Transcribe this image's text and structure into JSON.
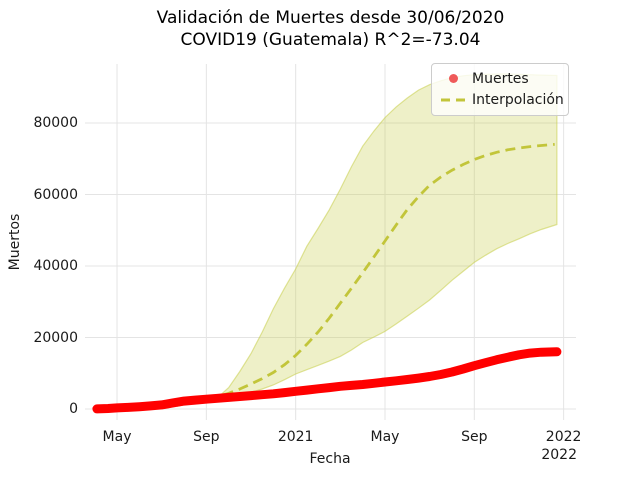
{
  "title": {
    "line1": "Validación de Muertes desde 30/06/2020",
    "line2": "COVID19 (Guatemala) R^2=-73.04"
  },
  "axes": {
    "xlabel": "Fecha",
    "ylabel": "Muertos",
    "x_offset_label": "2022",
    "x_ticks": [
      {
        "label": "May",
        "month": 1
      },
      {
        "label": "Sep",
        "month": 5
      },
      {
        "label": "2021",
        "month": 9
      },
      {
        "label": "May",
        "month": 13
      },
      {
        "label": "Sep",
        "month": 17
      },
      {
        "label": "2022",
        "month": 21
      }
    ],
    "y_ticks": [
      {
        "label": "0",
        "value": 0
      },
      {
        "label": "20000",
        "value": 20000
      },
      {
        "label": "40000",
        "value": 40000
      },
      {
        "label": "60000",
        "value": 60000
      },
      {
        "label": "80000",
        "value": 80000
      }
    ]
  },
  "legend": {
    "items": [
      {
        "label": "Muertes",
        "marker": "scatter-dot"
      },
      {
        "label": "Interpolación",
        "marker": "dashed-line"
      }
    ]
  },
  "colors": {
    "muertes": "#ff0000",
    "muertes_legend_dot": "#ef5a5a",
    "interpolacion": "#c2c53a",
    "band_fill": "#c6cd48",
    "band_fill_alpha": 0.3,
    "band_edge_alpha": 0.55,
    "grid": "#e4e4e4",
    "legend_border": "#cccccc"
  },
  "chart_data": {
    "type": "line",
    "title": "Validación de Muertes desde 30/06/2020 COVID19 (Guatemala) R^2=-73.04",
    "xlabel": "Fecha",
    "ylabel": "Muertos",
    "x_unit": "months since 2020-04-01 (fractional)",
    "xlim": [
      -0.45,
      21.55
    ],
    "ylim": [
      -3100,
      96500
    ],
    "grid": true,
    "legend_position": "upper right",
    "series": [
      {
        "name": "Muertes",
        "type": "scatter",
        "points": [
          [
            0.1,
            30
          ],
          [
            0.6,
            150
          ],
          [
            1,
            300
          ],
          [
            1.5,
            460
          ],
          [
            2,
            650
          ],
          [
            2.5,
            880
          ],
          [
            3,
            1150
          ],
          [
            3.5,
            1700
          ],
          [
            4,
            2200
          ],
          [
            4.5,
            2500
          ],
          [
            5,
            2750
          ],
          [
            5.5,
            3000
          ],
          [
            6,
            3250
          ],
          [
            6.5,
            3500
          ],
          [
            7,
            3750
          ],
          [
            7.5,
            4000
          ],
          [
            8,
            4250
          ],
          [
            8.5,
            4600
          ],
          [
            9,
            4950
          ],
          [
            9.5,
            5300
          ],
          [
            10,
            5650
          ],
          [
            10.5,
            6000
          ],
          [
            11,
            6350
          ],
          [
            11.5,
            6600
          ],
          [
            12,
            6850
          ],
          [
            12.5,
            7200
          ],
          [
            13,
            7550
          ],
          [
            13.5,
            7900
          ],
          [
            14,
            8250
          ],
          [
            14.5,
            8650
          ],
          [
            15,
            9100
          ],
          [
            15.5,
            9650
          ],
          [
            16,
            10350
          ],
          [
            16.5,
            11200
          ],
          [
            17,
            12100
          ],
          [
            17.5,
            12950
          ],
          [
            18,
            13750
          ],
          [
            18.5,
            14500
          ],
          [
            19,
            15150
          ],
          [
            19.5,
            15650
          ],
          [
            20,
            15900
          ],
          [
            20.7,
            16000
          ]
        ]
      },
      {
        "name": "Interpolación",
        "type": "dashed-line",
        "points": [
          [
            2.97,
            300
          ],
          [
            3.5,
            800
          ],
          [
            4,
            1400
          ],
          [
            4.5,
            2000
          ],
          [
            5,
            2700
          ],
          [
            5.5,
            3500
          ],
          [
            6,
            4400
          ],
          [
            6.5,
            5600
          ],
          [
            7,
            7000
          ],
          [
            7.5,
            8500
          ],
          [
            8,
            10200
          ],
          [
            8.5,
            12400
          ],
          [
            9,
            15000
          ],
          [
            9.5,
            18100
          ],
          [
            10,
            21500
          ],
          [
            10.5,
            25400
          ],
          [
            11,
            29600
          ],
          [
            11.5,
            33800
          ],
          [
            12,
            38100
          ],
          [
            12.5,
            42500
          ],
          [
            13,
            47000
          ],
          [
            13.5,
            51500
          ],
          [
            14,
            55800
          ],
          [
            14.5,
            59400
          ],
          [
            15,
            62600
          ],
          [
            15.5,
            64900
          ],
          [
            16,
            66800
          ],
          [
            16.5,
            68400
          ],
          [
            17,
            69800
          ],
          [
            17.5,
            70900
          ],
          [
            18,
            71800
          ],
          [
            18.5,
            72500
          ],
          [
            19,
            73000
          ],
          [
            19.5,
            73400
          ],
          [
            20,
            73700
          ],
          [
            20.6,
            74000
          ]
        ]
      }
    ],
    "band": {
      "name": "prediction-confidence-band",
      "points_month_lower_upper": [
        [
          5.4,
          2300,
          2600
        ],
        [
          6,
          3200,
          6000
        ],
        [
          6.5,
          3900,
          10500
        ],
        [
          7,
          4700,
          15500
        ],
        [
          7.5,
          5600,
          21500
        ],
        [
          8,
          6700,
          28000
        ],
        [
          8.5,
          8200,
          33800
        ],
        [
          9,
          9800,
          39200
        ],
        [
          9.5,
          11000,
          45500
        ],
        [
          10,
          12200,
          50500
        ],
        [
          10.5,
          13400,
          55700
        ],
        [
          11,
          14700,
          61500
        ],
        [
          11.5,
          16500,
          67800
        ],
        [
          12,
          18600,
          73500
        ],
        [
          12.5,
          20100,
          77700
        ],
        [
          13,
          21700,
          81500
        ],
        [
          13.5,
          23800,
          84500
        ],
        [
          14,
          26000,
          87000
        ],
        [
          14.5,
          28200,
          89200
        ],
        [
          15,
          30500,
          90700
        ],
        [
          15.5,
          33200,
          91800
        ],
        [
          16,
          36000,
          92700
        ],
        [
          16.5,
          38500,
          93200
        ],
        [
          17,
          41000,
          93500
        ],
        [
          17.5,
          43000,
          93600
        ],
        [
          18,
          44800,
          93700
        ],
        [
          18.5,
          46300,
          93700
        ],
        [
          19,
          47600,
          93600
        ],
        [
          19.5,
          49000,
          93500
        ],
        [
          20,
          50200,
          93400
        ],
        [
          20.7,
          51600,
          93300
        ]
      ]
    }
  }
}
